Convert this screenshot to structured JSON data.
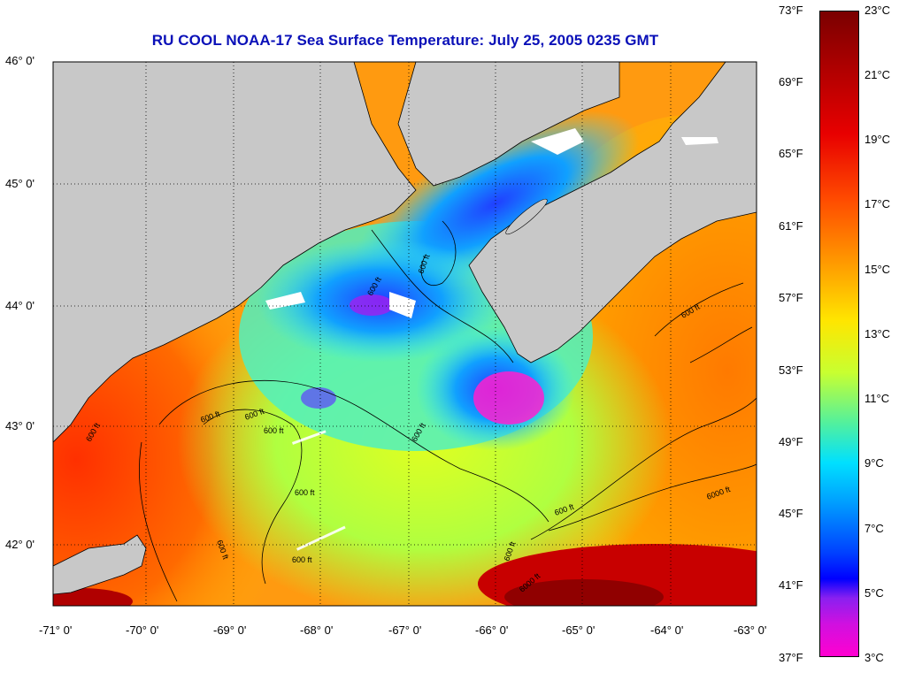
{
  "title": "RU COOL  NOAA-17  Sea Surface Temperature:  July 25, 2005 0235 GMT",
  "latitude_labels": [
    "46° 0'",
    "45° 0'",
    "44° 0'",
    "43° 0'",
    "42° 0'"
  ],
  "longitude_labels": [
    "-71° 0'",
    "-70° 0'",
    "-69° 0'",
    "-68° 0'",
    "-67° 0'",
    "-66° 0'",
    "-65° 0'",
    "-64° 0'",
    "-63° 0'"
  ],
  "colorbar": {
    "fahrenheit": [
      "73°F",
      "69°F",
      "65°F",
      "61°F",
      "57°F",
      "53°F",
      "49°F",
      "45°F",
      "41°F",
      "37°F"
    ],
    "celsius": [
      "23°C",
      "21°C",
      "19°C",
      "17°C",
      "15°C",
      "13°C",
      "11°C",
      "9°C",
      "7°C",
      "5°C",
      "3°C"
    ]
  },
  "contour_labels": [
    "600 ft",
    "600 ft",
    "600 ft",
    "600 ft",
    "600 ft",
    "600 ft",
    "600 ft",
    "600 ft",
    "600 ft",
    "600 ft",
    "600 ft",
    "600 ft",
    "600 ft",
    "6000 ft",
    "6000 ft"
  ],
  "colors": {
    "title": "#0a10b8",
    "land": "#c8c8c8",
    "background": "#ffffff"
  }
}
